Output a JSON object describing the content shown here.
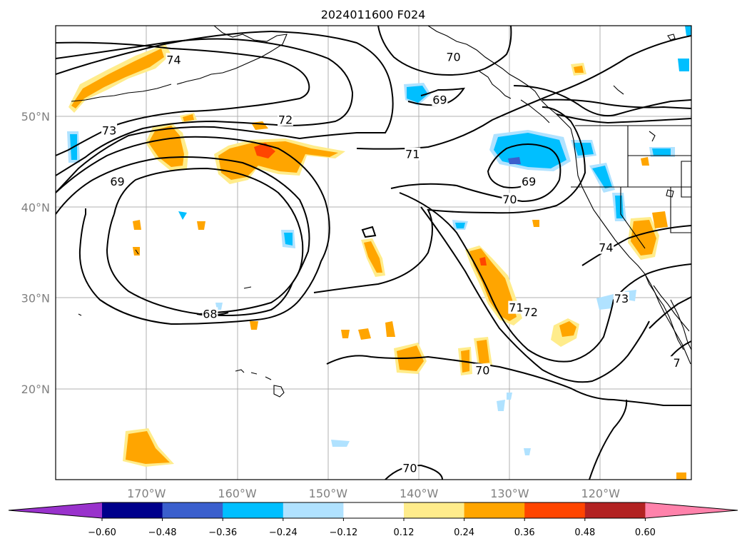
{
  "title": "2024011600 F024",
  "map": {
    "lat_labels": [
      {
        "label": "50°N",
        "lat": 50
      },
      {
        "label": "40°N",
        "lat": 40
      },
      {
        "label": "30°N",
        "lat": 30
      },
      {
        "label": "20°N",
        "lat": 20
      }
    ],
    "lon_labels": [
      {
        "label": "170°W",
        "lon": -170
      },
      {
        "label": "160°W",
        "lon": -160
      },
      {
        "label": "150°W",
        "lon": -150
      },
      {
        "label": "140°W",
        "lon": -140
      },
      {
        "label": "130°W",
        "lon": -130
      },
      {
        "label": "120°W",
        "lon": -120
      }
    ],
    "lon_range": [
      -180,
      -110
    ],
    "lat_range": [
      10,
      60
    ],
    "grid": true,
    "contour_labels": [
      {
        "text": "74",
        "lon": -167.0,
        "lat": 56.2
      },
      {
        "text": "70",
        "lon": -136.2,
        "lat": 56.5
      },
      {
        "text": "69",
        "lon": -137.7,
        "lat": 51.8
      },
      {
        "text": "72",
        "lon": -154.7,
        "lat": 49.6
      },
      {
        "text": "73",
        "lon": -174.1,
        "lat": 48.4
      },
      {
        "text": "69",
        "lon": -173.2,
        "lat": 42.8
      },
      {
        "text": "71",
        "lon": -140.7,
        "lat": 45.8
      },
      {
        "text": "69",
        "lon": -127.9,
        "lat": 42.8
      },
      {
        "text": "70",
        "lon": -130.0,
        "lat": 40.8
      },
      {
        "text": "74",
        "lon": -119.4,
        "lat": 35.5
      },
      {
        "text": "71",
        "lon": -129.3,
        "lat": 28.9
      },
      {
        "text": "72",
        "lon": -127.7,
        "lat": 28.4
      },
      {
        "text": "73",
        "lon": -117.7,
        "lat": 29.9
      },
      {
        "text": "68",
        "lon": -163.0,
        "lat": 28.2
      },
      {
        "text": "70",
        "lon": -133.0,
        "lat": 22.0
      },
      {
        "text": "70",
        "lon": -141.0,
        "lat": 11.2
      },
      {
        "text": "7",
        "lon": -111.6,
        "lat": 22.8
      }
    ]
  },
  "colorbar": {
    "tick_labels": [
      "−0.60",
      "−0.48",
      "−0.36",
      "−0.24",
      "−0.12",
      "0.12",
      "0.24",
      "0.36",
      "0.48",
      "0.60"
    ],
    "colors": [
      "#9932cc",
      "#00008b",
      "#3a5fcd",
      "#00bfff",
      "#b0e2ff",
      "#ffffff",
      "#ffec8b",
      "#ffa500",
      "#ff4500",
      "#b22222",
      "#ff82ab"
    ]
  }
}
